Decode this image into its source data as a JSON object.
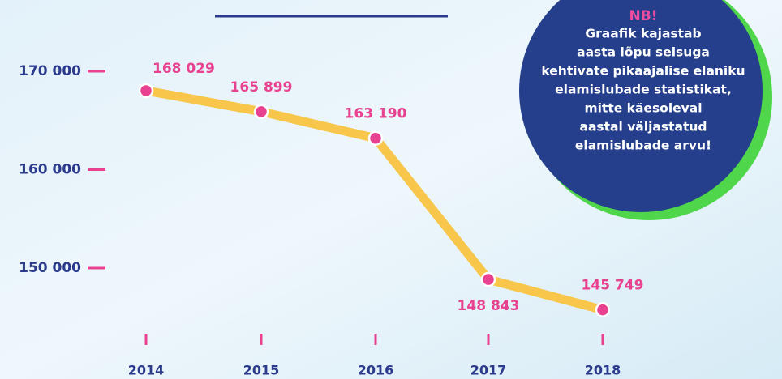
{
  "chart_data": {
    "type": "line",
    "categories": [
      "2014",
      "2015",
      "2016",
      "2017",
      "2018"
    ],
    "series": [
      {
        "color": "#f7c64a",
        "values": [
          168029,
          165899,
          163190,
          148843,
          145749
        ],
        "value_labels": [
          "168 029",
          "165 899",
          "163 190",
          "148 843",
          "145 749"
        ]
      }
    ],
    "ylim": [
      144000,
      172000
    ],
    "yticks": [
      {
        "value": 150000,
        "label": "150 000"
      },
      {
        "value": 160000,
        "label": "160 000"
      },
      {
        "value": 170000,
        "label": "170 000"
      }
    ],
    "note": {
      "title": "NB!",
      "lines": [
        "Graafik kajastab",
        "aasta lõpu seisuga",
        "kehtivate pikaajalise elaniku",
        "elamislubade statistikat,",
        "mitte käesoleval",
        "aastal väljastatud",
        "elamislubade arvu!"
      ]
    }
  }
}
